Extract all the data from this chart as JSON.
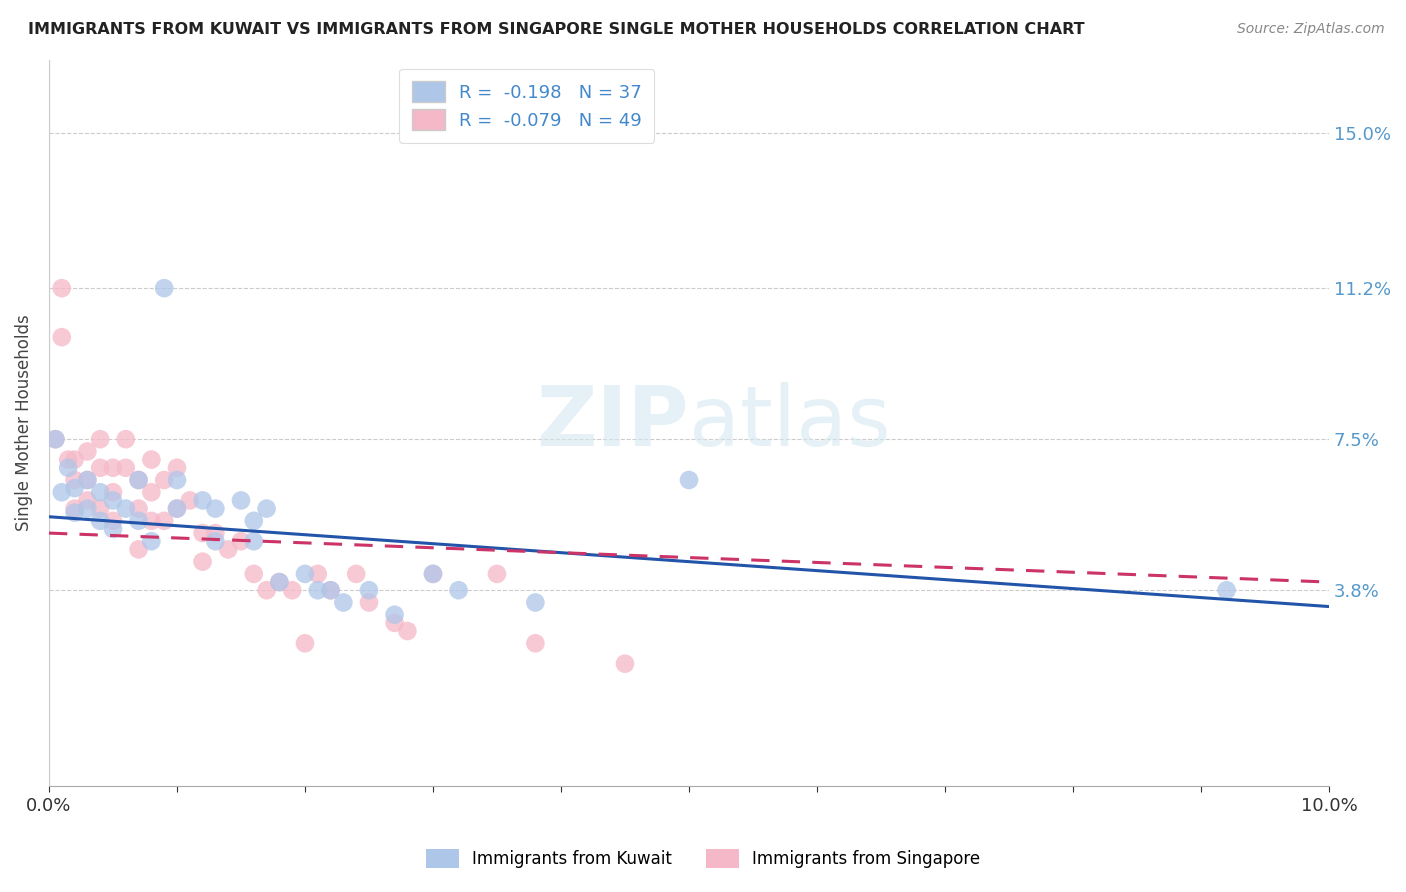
{
  "title": "IMMIGRANTS FROM KUWAIT VS IMMIGRANTS FROM SINGAPORE SINGLE MOTHER HOUSEHOLDS CORRELATION CHART",
  "source": "Source: ZipAtlas.com",
  "ylabel": "Single Mother Households",
  "x_min": 0.0,
  "x_max": 0.1,
  "y_min": -0.01,
  "y_max": 0.168,
  "yticks": [
    0.038,
    0.075,
    0.112,
    0.15
  ],
  "ytick_labels": [
    "3.8%",
    "7.5%",
    "11.2%",
    "15.0%"
  ],
  "xticks": [
    0.0,
    0.01,
    0.02,
    0.03,
    0.04,
    0.05,
    0.06,
    0.07,
    0.08,
    0.09,
    0.1
  ],
  "xtick_labels": [
    "0.0%",
    "",
    "",
    "",
    "",
    "",
    "",
    "",
    "",
    "",
    "10.0%"
  ],
  "kuwait_R": -0.198,
  "kuwait_N": 37,
  "singapore_R": -0.079,
  "singapore_N": 49,
  "kuwait_color": "#aec6e8",
  "kuwait_line_color": "#2255aa",
  "singapore_color": "#f5b8c8",
  "singapore_line_color": "#cc3366",
  "legend_kuwait_label": "Immigrants from Kuwait",
  "legend_singapore_label": "Immigrants from Singapore",
  "kuwait_x": [
    0.0005,
    0.001,
    0.0015,
    0.002,
    0.002,
    0.003,
    0.003,
    0.004,
    0.004,
    0.005,
    0.005,
    0.006,
    0.007,
    0.007,
    0.008,
    0.009,
    0.01,
    0.01,
    0.012,
    0.013,
    0.013,
    0.015,
    0.016,
    0.016,
    0.017,
    0.018,
    0.02,
    0.021,
    0.022,
    0.023,
    0.025,
    0.027,
    0.03,
    0.032,
    0.038,
    0.05,
    0.092
  ],
  "kuwait_y": [
    0.075,
    0.062,
    0.068,
    0.063,
    0.057,
    0.065,
    0.058,
    0.062,
    0.055,
    0.06,
    0.053,
    0.058,
    0.065,
    0.055,
    0.05,
    0.112,
    0.065,
    0.058,
    0.06,
    0.058,
    0.05,
    0.06,
    0.055,
    0.05,
    0.058,
    0.04,
    0.042,
    0.038,
    0.038,
    0.035,
    0.038,
    0.032,
    0.042,
    0.038,
    0.035,
    0.065,
    0.038
  ],
  "singapore_x": [
    0.0005,
    0.001,
    0.001,
    0.0015,
    0.002,
    0.002,
    0.002,
    0.003,
    0.003,
    0.003,
    0.004,
    0.004,
    0.004,
    0.005,
    0.005,
    0.005,
    0.006,
    0.006,
    0.007,
    0.007,
    0.007,
    0.008,
    0.008,
    0.008,
    0.009,
    0.009,
    0.01,
    0.01,
    0.011,
    0.012,
    0.012,
    0.013,
    0.014,
    0.015,
    0.016,
    0.017,
    0.018,
    0.019,
    0.02,
    0.021,
    0.022,
    0.024,
    0.025,
    0.027,
    0.028,
    0.03,
    0.035,
    0.038,
    0.045
  ],
  "singapore_y": [
    0.075,
    0.112,
    0.1,
    0.07,
    0.07,
    0.065,
    0.058,
    0.072,
    0.065,
    0.06,
    0.075,
    0.068,
    0.058,
    0.068,
    0.062,
    0.055,
    0.075,
    0.068,
    0.065,
    0.058,
    0.048,
    0.07,
    0.062,
    0.055,
    0.065,
    0.055,
    0.068,
    0.058,
    0.06,
    0.052,
    0.045,
    0.052,
    0.048,
    0.05,
    0.042,
    0.038,
    0.04,
    0.038,
    0.025,
    0.042,
    0.038,
    0.042,
    0.035,
    0.03,
    0.028,
    0.042,
    0.042,
    0.025,
    0.02
  ],
  "kuwait_line_x": [
    0.0,
    0.1
  ],
  "kuwait_line_y": [
    0.056,
    0.034
  ],
  "singapore_line_x": [
    0.0,
    0.1
  ],
  "singapore_line_y": [
    0.052,
    0.04
  ]
}
